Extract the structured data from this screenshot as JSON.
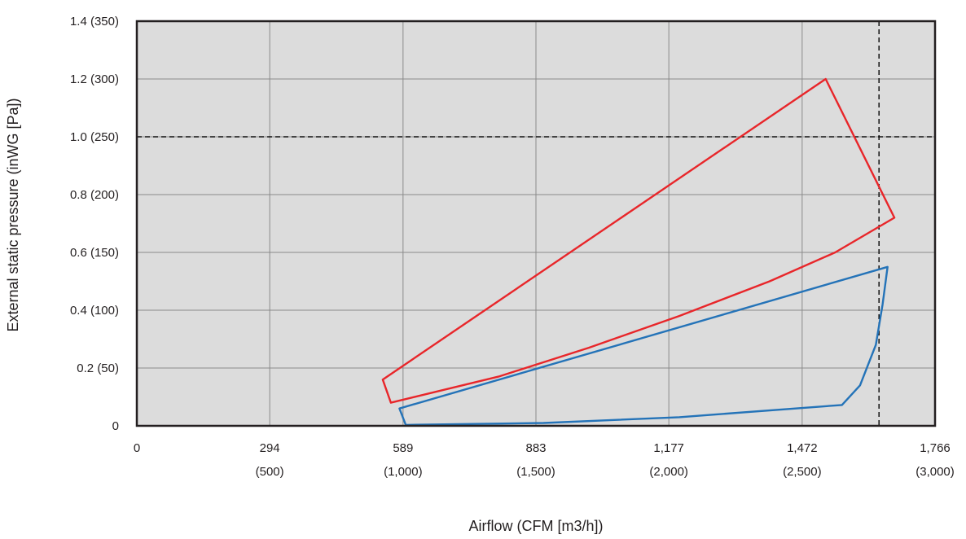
{
  "chart_data": {
    "type": "line",
    "xlabel": "Airflow (CFM [m3/h])",
    "ylabel": "External static pressure (inWG [Pa])",
    "xlim": [
      0,
      1766
    ],
    "ylim": [
      0,
      1.4
    ],
    "grid": true,
    "x_ticks": [
      {
        "value": 0,
        "label": "0",
        "sublabel": ""
      },
      {
        "value": 294,
        "label": "294",
        "sublabel": "(500)"
      },
      {
        "value": 589,
        "label": "589",
        "sublabel": "(1,000)"
      },
      {
        "value": 883,
        "label": "883",
        "sublabel": "(1,500)"
      },
      {
        "value": 1177,
        "label": "1,177",
        "sublabel": "(2,000)"
      },
      {
        "value": 1472,
        "label": "1,472",
        "sublabel": "(2,500)"
      },
      {
        "value": 1766,
        "label": "1,766",
        "sublabel": "(3,000)"
      }
    ],
    "y_ticks": [
      {
        "value": 0,
        "label": "0"
      },
      {
        "value": 0.2,
        "label": "0.2 (50)"
      },
      {
        "value": 0.4,
        "label": "0.4 (100)"
      },
      {
        "value": 0.6,
        "label": "0.6 (150)"
      },
      {
        "value": 0.8,
        "label": "0.8 (200)"
      },
      {
        "value": 1.0,
        "label": "1.0 (250)"
      },
      {
        "value": 1.2,
        "label": "1.2 (300)"
      },
      {
        "value": 1.4,
        "label": "1.4 (350)"
      }
    ],
    "reference_lines": [
      {
        "axis": "y",
        "value": 1.0,
        "style": "dashed"
      },
      {
        "axis": "x",
        "value": 1642,
        "style": "dashed"
      }
    ],
    "series": [
      {
        "color": "#e8262a",
        "closed": true,
        "points": [
          [
            544,
            0.16
          ],
          [
            1524,
            1.2
          ],
          [
            1676,
            0.72
          ],
          [
            1545,
            0.6
          ],
          [
            1400,
            0.5
          ],
          [
            1200,
            0.38
          ],
          [
            1000,
            0.27
          ],
          [
            800,
            0.17
          ],
          [
            562,
            0.08
          ]
        ]
      },
      {
        "color": "#2473b8",
        "closed": true,
        "points": [
          [
            581,
            0.06
          ],
          [
            1661,
            0.55
          ],
          [
            1650,
            0.42
          ],
          [
            1635,
            0.28
          ],
          [
            1600,
            0.14
          ],
          [
            1560,
            0.072
          ],
          [
            1200,
            0.03
          ],
          [
            900,
            0.01
          ],
          [
            595,
            0.003
          ]
        ]
      }
    ]
  }
}
